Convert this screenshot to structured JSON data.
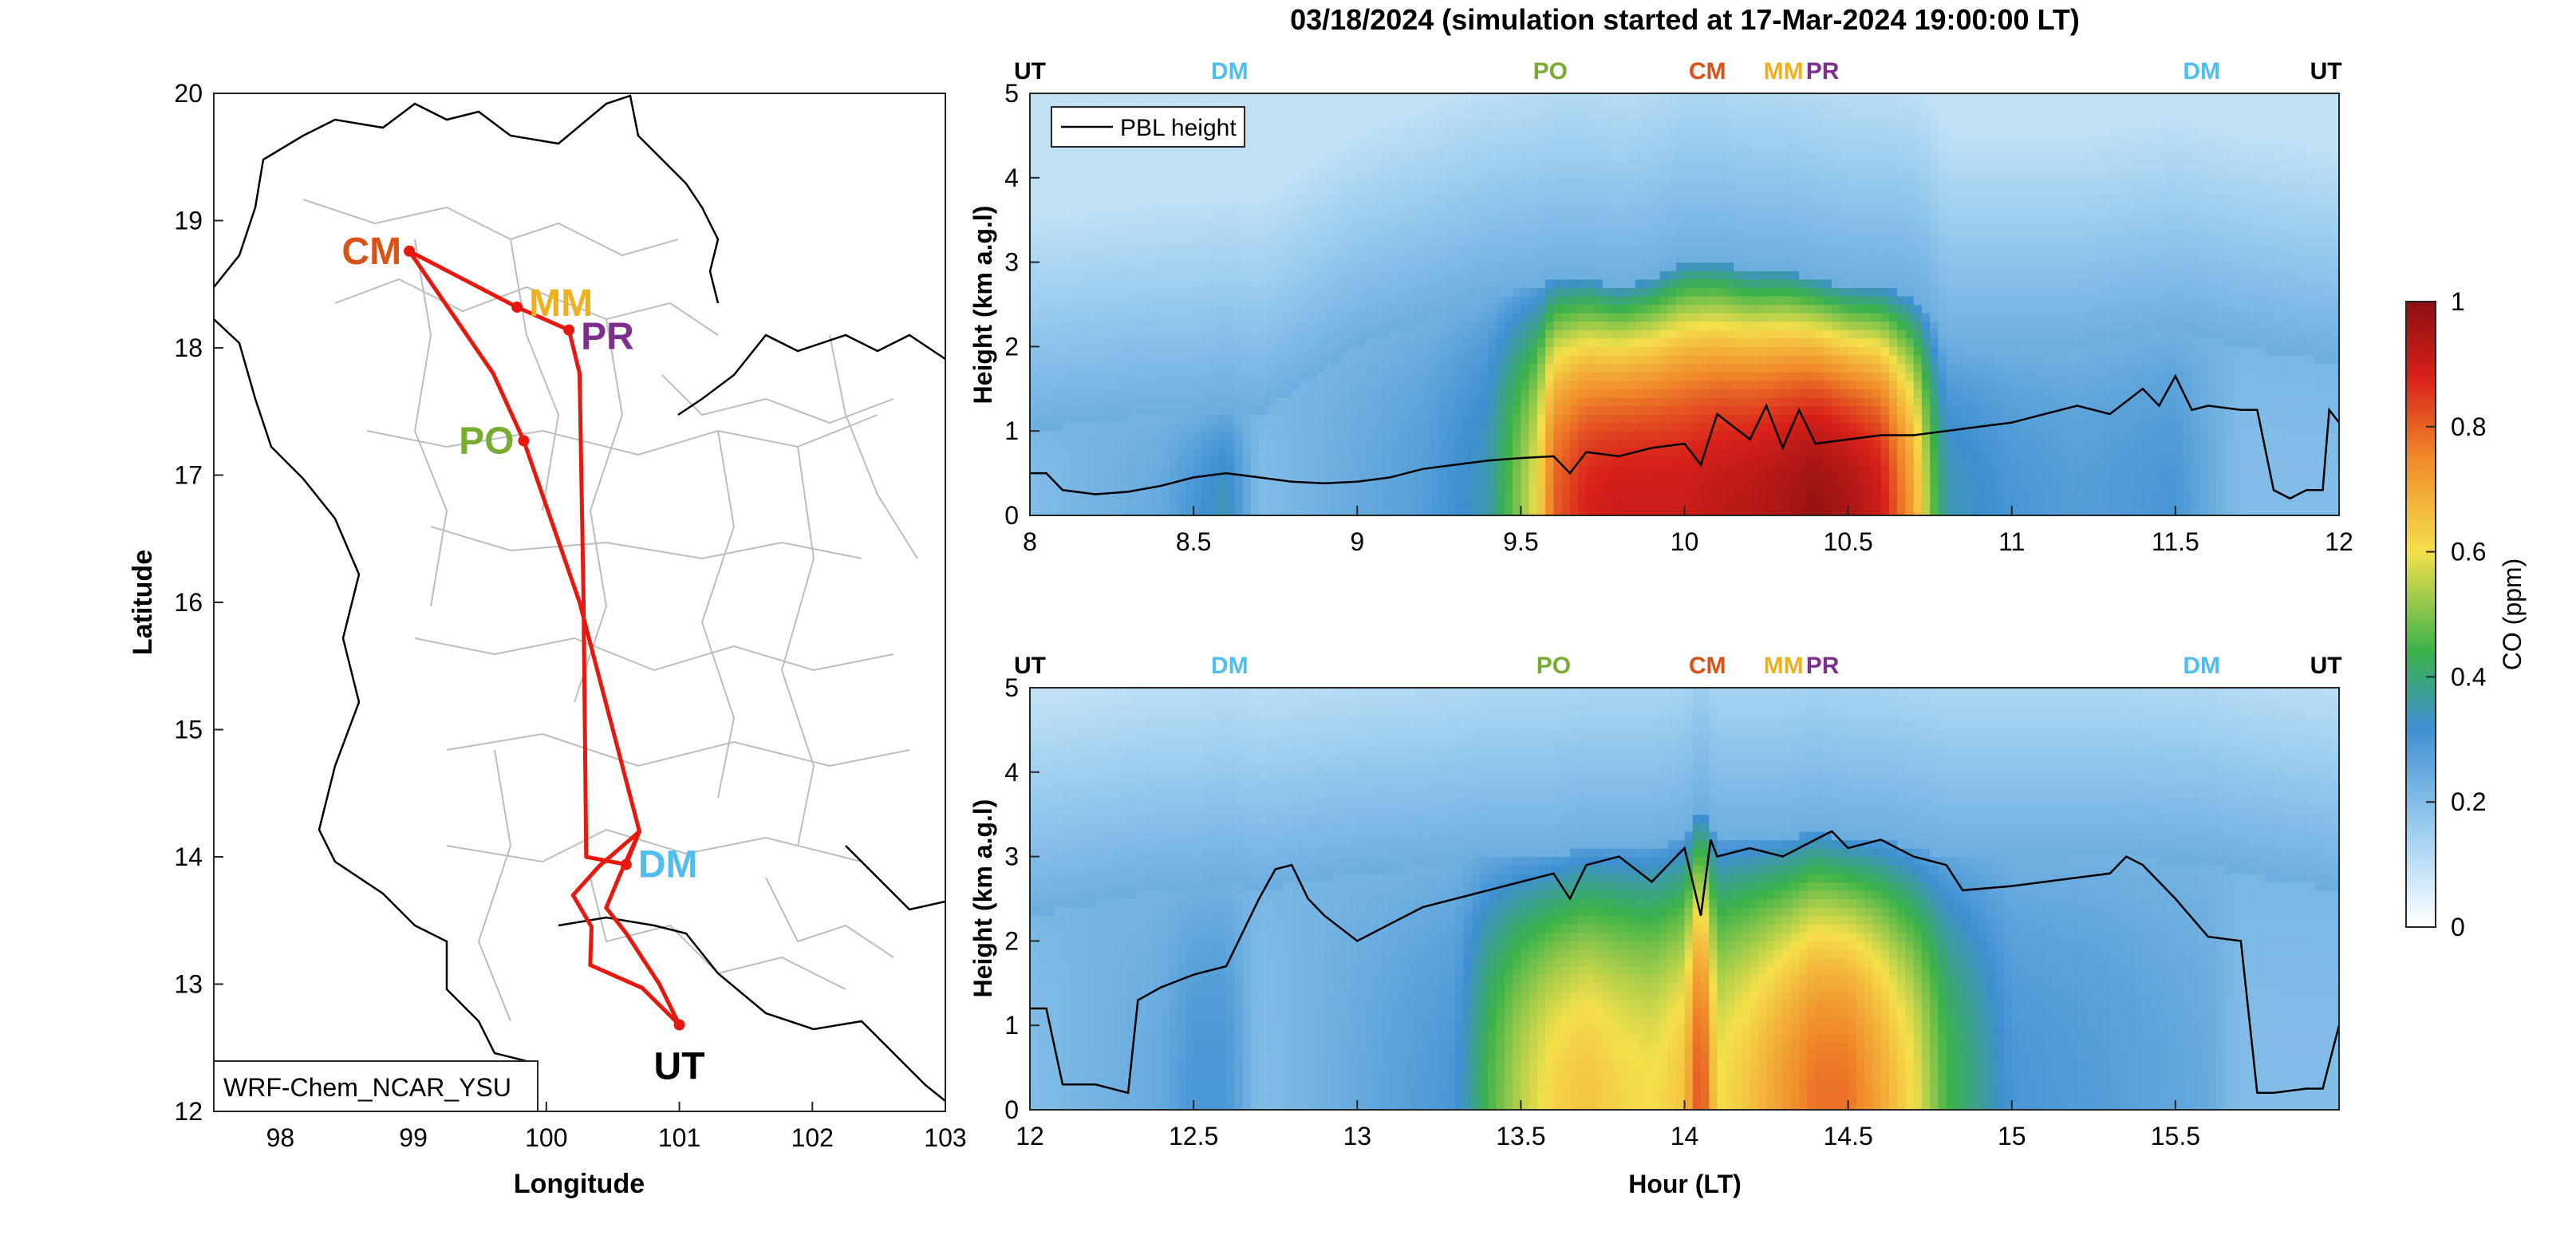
{
  "figure_title": "03/18/2024 (simulation started at 17-Mar-2024 19:00:00 LT)",
  "colors": {
    "route": "#e8180e",
    "CM": "#d95319",
    "MM": "#edb120",
    "PR": "#7e2f8e",
    "PO": "#77ac30",
    "DM": "#4dbeee",
    "UT": "#000000"
  },
  "chart_data": [
    {
      "type": "map",
      "xlabel": "Longitude",
      "ylabel": "Latitude",
      "xlim": [
        97.5,
        103
      ],
      "ylim": [
        12,
        20
      ],
      "xticks": [
        98,
        99,
        100,
        101,
        102,
        103
      ],
      "yticks": [
        12,
        13,
        14,
        15,
        16,
        17,
        18,
        19,
        20
      ],
      "model_label": "WRF-Chem_NCAR_YSU",
      "sites": [
        {
          "name": "CM",
          "lon": 98.97,
          "lat": 18.76
        },
        {
          "name": "MM",
          "lon": 99.78,
          "lat": 18.32
        },
        {
          "name": "PR",
          "lon": 100.17,
          "lat": 18.14
        },
        {
          "name": "PO",
          "lon": 99.83,
          "lat": 17.27
        },
        {
          "name": "DM",
          "lon": 100.6,
          "lat": 13.94
        },
        {
          "name": "UT",
          "lon": 101.0,
          "lat": 12.68
        }
      ],
      "route": [
        [
          101.0,
          12.68
        ],
        [
          100.72,
          12.97
        ],
        [
          100.33,
          13.15
        ],
        [
          100.34,
          13.45
        ],
        [
          100.2,
          13.7
        ],
        [
          100.4,
          13.93
        ],
        [
          100.7,
          14.2
        ],
        [
          100.25,
          16.0
        ],
        [
          99.83,
          17.27
        ],
        [
          99.6,
          17.8
        ],
        [
          98.97,
          18.76
        ],
        [
          99.78,
          18.32
        ],
        [
          100.17,
          18.14
        ],
        [
          100.25,
          17.8
        ],
        [
          100.28,
          16.0
        ],
        [
          100.3,
          14.0
        ],
        [
          100.6,
          13.94
        ],
        [
          100.7,
          14.2
        ],
        [
          100.55,
          13.85
        ],
        [
          100.45,
          13.6
        ],
        [
          100.6,
          13.4
        ],
        [
          100.85,
          13.0
        ],
        [
          101.0,
          12.68
        ]
      ]
    },
    {
      "type": "heatmap",
      "xlabel": "",
      "ylabel": "Height (km a.g.l)",
      "xlim": [
        8,
        12
      ],
      "ylim": [
        0,
        5
      ],
      "xticks": [
        "8",
        "8.5",
        "9",
        "9.5",
        "10",
        "10.5",
        "11",
        "11.5",
        "12"
      ],
      "yticks": [
        "0",
        "1",
        "2",
        "3",
        "4",
        "5"
      ],
      "legend": "PBL height",
      "site_markers": [
        {
          "name": "UT",
          "x": 8.0
        },
        {
          "name": "DM",
          "x": 8.61
        },
        {
          "name": "PO",
          "x": 9.59
        },
        {
          "name": "CM",
          "x": 10.07
        },
        {
          "name": "MM",
          "x": 10.3
        },
        {
          "name": "PR",
          "x": 10.42
        },
        {
          "name": "DM",
          "x": 11.58
        },
        {
          "name": "UT",
          "x": 11.96
        }
      ],
      "pbl_height": {
        "x": [
          8.0,
          8.05,
          8.1,
          8.2,
          8.3,
          8.4,
          8.5,
          8.6,
          8.7,
          8.8,
          8.9,
          9.0,
          9.1,
          9.2,
          9.3,
          9.4,
          9.5,
          9.6,
          9.65,
          9.7,
          9.8,
          9.9,
          10.0,
          10.05,
          10.1,
          10.2,
          10.25,
          10.3,
          10.35,
          10.4,
          10.5,
          10.6,
          10.7,
          10.8,
          10.9,
          11.0,
          11.1,
          11.2,
          11.3,
          11.4,
          11.45,
          11.5,
          11.55,
          11.6,
          11.7,
          11.75,
          11.8,
          11.85,
          11.9,
          11.95,
          11.97,
          12.0
        ],
        "y": [
          0.5,
          0.5,
          0.3,
          0.25,
          0.28,
          0.35,
          0.45,
          0.5,
          0.45,
          0.4,
          0.38,
          0.4,
          0.45,
          0.55,
          0.6,
          0.65,
          0.68,
          0.7,
          0.5,
          0.75,
          0.7,
          0.8,
          0.85,
          0.6,
          1.2,
          0.9,
          1.3,
          0.8,
          1.25,
          0.85,
          0.9,
          0.95,
          0.95,
          1.0,
          1.05,
          1.1,
          1.2,
          1.3,
          1.2,
          1.5,
          1.3,
          1.65,
          1.25,
          1.3,
          1.25,
          1.25,
          0.3,
          0.2,
          0.3,
          0.3,
          1.25,
          1.1
        ]
      },
      "co_columns_ppm": {
        "x": [
          8.0,
          8.4,
          8.5,
          8.6,
          8.7,
          9.0,
          9.2,
          9.4,
          9.55,
          9.6,
          9.7,
          9.8,
          9.9,
          10.0,
          10.1,
          10.2,
          10.3,
          10.4,
          10.5,
          10.6,
          10.7,
          10.75,
          10.8,
          11.0,
          11.2,
          11.5,
          11.7,
          12.0
        ],
        "near_surface": [
          0.2,
          0.25,
          0.3,
          0.35,
          0.2,
          0.25,
          0.28,
          0.35,
          0.6,
          0.8,
          0.88,
          0.9,
          0.9,
          0.9,
          0.92,
          0.93,
          0.95,
          0.98,
          0.95,
          0.9,
          0.7,
          0.5,
          0.35,
          0.3,
          0.28,
          0.3,
          0.2,
          0.2
        ],
        "top_km": [
          1.0,
          1.2,
          1.2,
          1.3,
          1.2,
          2.0,
          2.3,
          2.6,
          2.7,
          2.8,
          2.8,
          2.7,
          2.8,
          3.0,
          3.0,
          2.9,
          2.9,
          2.8,
          2.7,
          2.7,
          2.6,
          2.4,
          2.0,
          2.0,
          2.0,
          2.2,
          2.0,
          1.8
        ]
      }
    },
    {
      "type": "heatmap",
      "xlabel": "Hour (LT)",
      "ylabel": "Height (km a.g.l)",
      "xlim": [
        12,
        16
      ],
      "ylim": [
        0,
        5
      ],
      "xticks": [
        "12",
        "12.5",
        "13",
        "13.5",
        "14",
        "14.5",
        "15",
        "15.5"
      ],
      "yticks": [
        "0",
        "1",
        "2",
        "3",
        "4",
        "5"
      ],
      "site_markers": [
        {
          "name": "UT",
          "x": 12.0
        },
        {
          "name": "DM",
          "x": 12.61
        },
        {
          "name": "PO",
          "x": 13.6
        },
        {
          "name": "CM",
          "x": 14.07
        },
        {
          "name": "MM",
          "x": 14.3
        },
        {
          "name": "PR",
          "x": 14.42
        },
        {
          "name": "DM",
          "x": 15.58
        },
        {
          "name": "UT",
          "x": 15.96
        }
      ],
      "pbl_height": {
        "x": [
          12.0,
          12.05,
          12.1,
          12.2,
          12.3,
          12.33,
          12.4,
          12.5,
          12.6,
          12.7,
          12.75,
          12.8,
          12.85,
          12.9,
          13.0,
          13.1,
          13.2,
          13.3,
          13.4,
          13.5,
          13.6,
          13.65,
          13.7,
          13.8,
          13.9,
          14.0,
          14.05,
          14.08,
          14.1,
          14.2,
          14.3,
          14.4,
          14.45,
          14.5,
          14.6,
          14.7,
          14.8,
          14.85,
          15.0,
          15.2,
          15.3,
          15.35,
          15.4,
          15.5,
          15.6,
          15.7,
          15.75,
          15.8,
          15.9,
          15.95,
          16.0
        ],
        "y": [
          1.2,
          1.2,
          0.3,
          0.3,
          0.2,
          1.3,
          1.45,
          1.6,
          1.7,
          2.5,
          2.85,
          2.9,
          2.5,
          2.3,
          2.0,
          2.2,
          2.4,
          2.5,
          2.6,
          2.7,
          2.8,
          2.5,
          2.9,
          3.0,
          2.7,
          3.1,
          2.3,
          3.2,
          3.0,
          3.1,
          3.0,
          3.2,
          3.3,
          3.1,
          3.2,
          3.0,
          2.9,
          2.6,
          2.65,
          2.75,
          2.8,
          3.0,
          2.9,
          2.5,
          2.05,
          2.0,
          0.2,
          0.2,
          0.25,
          0.25,
          1.0
        ]
      },
      "co_columns_ppm": {
        "x": [
          12.0,
          12.4,
          12.5,
          12.6,
          12.7,
          13.0,
          13.3,
          13.4,
          13.5,
          13.6,
          13.7,
          13.8,
          13.9,
          14.0,
          14.05,
          14.1,
          14.2,
          14.3,
          14.4,
          14.5,
          14.6,
          14.7,
          14.8,
          15.0,
          15.3,
          15.6,
          15.7,
          16.0
        ],
        "near_surface": [
          0.2,
          0.25,
          0.3,
          0.3,
          0.2,
          0.25,
          0.3,
          0.45,
          0.55,
          0.62,
          0.65,
          0.62,
          0.6,
          0.65,
          0.85,
          0.6,
          0.65,
          0.72,
          0.78,
          0.78,
          0.7,
          0.6,
          0.45,
          0.3,
          0.28,
          0.25,
          0.2,
          0.2
        ],
        "top_km": [
          2.3,
          2.6,
          2.6,
          2.7,
          2.6,
          2.8,
          2.9,
          3.0,
          3.0,
          3.0,
          3.1,
          3.1,
          3.1,
          3.2,
          3.6,
          3.2,
          3.2,
          3.2,
          3.3,
          3.2,
          3.2,
          3.1,
          3.0,
          3.0,
          3.0,
          2.9,
          2.8,
          2.6
        ]
      }
    }
  ],
  "colorbar": {
    "label": "CO (ppm)",
    "range": [
      0,
      1
    ],
    "ticks": [
      "0",
      "0.2",
      "0.4",
      "0.6",
      "0.8",
      "1"
    ],
    "stops": [
      "#ffffff",
      "#9fd0f0",
      "#3e8fd1",
      "#3ab24a",
      "#f5e04a",
      "#f08a2a",
      "#d8201a",
      "#8b1010"
    ]
  }
}
